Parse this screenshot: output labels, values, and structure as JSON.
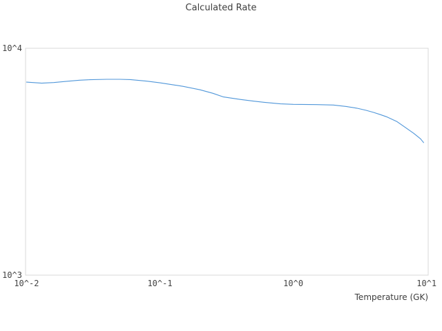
{
  "chart_data": {
    "type": "line",
    "title": "Calculated Rate",
    "xlabel": "Temperature (GK)",
    "ylabel": "",
    "x_scale": "log",
    "y_scale": "log",
    "xlim": [
      0.01,
      10
    ],
    "ylim": [
      1000,
      10000
    ],
    "grid": false,
    "legend_position": "none",
    "x_ticks": [
      {
        "value": 0.01,
        "label": "10^-2"
      },
      {
        "value": 0.1,
        "label": "10^-1"
      },
      {
        "value": 1,
        "label": "10^0"
      },
      {
        "value": 10,
        "label": "10^1"
      }
    ],
    "y_ticks": [
      {
        "value": 10000,
        "label": "10^4"
      },
      {
        "value": 1000,
        "label": "10^3"
      }
    ],
    "series": [
      {
        "name": "calculated-rate",
        "color": "#4f96d9",
        "points": [
          [
            0.01,
            7090
          ],
          [
            0.013,
            7020
          ],
          [
            0.016,
            7060
          ],
          [
            0.02,
            7150
          ],
          [
            0.025,
            7230
          ],
          [
            0.03,
            7270
          ],
          [
            0.04,
            7300
          ],
          [
            0.05,
            7300
          ],
          [
            0.06,
            7280
          ],
          [
            0.08,
            7160
          ],
          [
            0.1,
            7040
          ],
          [
            0.13,
            6880
          ],
          [
            0.15,
            6790
          ],
          [
            0.2,
            6560
          ],
          [
            0.25,
            6330
          ],
          [
            0.3,
            6100
          ],
          [
            0.4,
            5950
          ],
          [
            0.5,
            5850
          ],
          [
            0.6,
            5780
          ],
          [
            0.8,
            5690
          ],
          [
            1.0,
            5660
          ],
          [
            1.5,
            5645
          ],
          [
            2.0,
            5620
          ],
          [
            2.5,
            5540
          ],
          [
            3.0,
            5445
          ],
          [
            3.5,
            5330
          ],
          [
            4.0,
            5215
          ],
          [
            4.5,
            5100
          ],
          [
            5.0,
            4990
          ],
          [
            6.0,
            4750
          ],
          [
            7.0,
            4460
          ],
          [
            8.0,
            4220
          ],
          [
            9.0,
            3990
          ],
          [
            9.5,
            3840
          ]
        ]
      }
    ]
  },
  "colors": {
    "line": "#4f96d9",
    "plot_border": "#d9d9d9",
    "text": "#3d3d3d"
  }
}
